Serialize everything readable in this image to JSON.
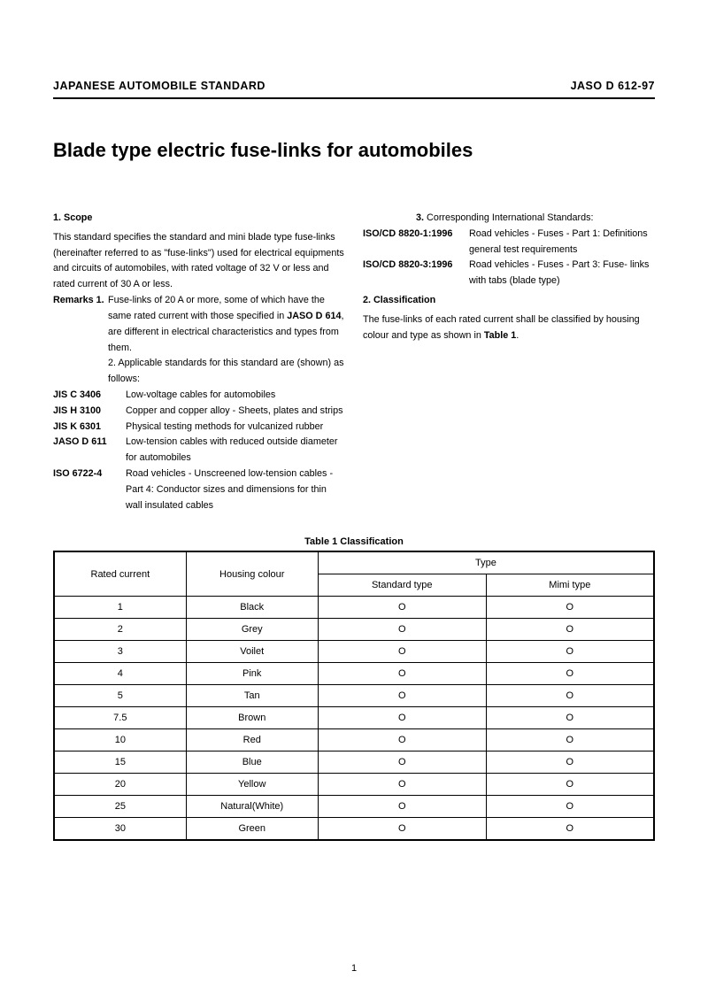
{
  "header": {
    "left": "JAPANESE AUTOMOBILE STANDARD",
    "right": "JASO D 612-97"
  },
  "title": "Blade type electric fuse-links for automobiles",
  "section1": {
    "head": "1. Scope",
    "body": "This standard specifies the standard and mini blade type fuse-links (hereinafter referred to as \"fuse-links\") used for electrical equipments and circuits of automobiles, with rated voltage of 32 V or less and rated current of 30 A or less.",
    "remarksLabel": "Remarks 1.",
    "remark1a": "Fuse-links of 20 A or more, some of which have the same rated current with those specified in ",
    "remark1bold": "JASO D 614",
    "remark1b": ", are different in electrical characteristics and types from them.",
    "remark2": "2. Applicable standards for this standard are (shown) as follows:"
  },
  "standards": [
    {
      "code": "JIS C 3406",
      "desc": "Low-voltage cables for automobiles"
    },
    {
      "code": "JIS H 3100",
      "desc": "Copper and copper alloy - Sheets, plates and strips"
    },
    {
      "code": "JIS K 6301",
      "desc": "Physical testing methods for vulcanized rubber"
    },
    {
      "code": "JASO D 611",
      "desc": "Low-tension cables with reduced outside diameter for automobiles"
    },
    {
      "code": "ISO 6722-4",
      "desc": "Road vehicles - Unscreened low-tension cables - Part 4: Conductor sizes and dimensions for thin wall insulated cables"
    }
  ],
  "intlLabel": "3.",
  "intlText": " Corresponding International Standards:",
  "intlStandards": [
    {
      "code": "ISO/CD 8820-1",
      "year": ":1996",
      "desc": "Road vehicles - Fuses - Part 1: Definitions general test requirements"
    },
    {
      "code": "ISO/CD 8820-3",
      "year": ":1996",
      "desc": "Road vehicles - Fuses - Part 3: Fuse- links with tabs (blade type)"
    }
  ],
  "section2": {
    "head": "2. Classification",
    "body": "The fuse-links of each rated current shall be classified by housing colour and type as shown in ",
    "bold": "Table 1",
    "tail": "."
  },
  "table": {
    "caption": "Table 1  Classification",
    "headers": {
      "rated": "Rated current",
      "colour": "Housing colour",
      "type": "Type",
      "std": "Standard type",
      "mini": "Mimi type"
    },
    "mark": "O",
    "rows": [
      {
        "current": "1",
        "colour": "Black",
        "std": true,
        "mini": true
      },
      {
        "current": "2",
        "colour": "Grey",
        "std": true,
        "mini": true
      },
      {
        "current": "3",
        "colour": "Voilet",
        "std": true,
        "mini": true
      },
      {
        "current": "4",
        "colour": "Pink",
        "std": true,
        "mini": true
      },
      {
        "current": "5",
        "colour": "Tan",
        "std": true,
        "mini": true
      },
      {
        "current": "7.5",
        "colour": "Brown",
        "std": true,
        "mini": true
      },
      {
        "current": "10",
        "colour": "Red",
        "std": true,
        "mini": true
      },
      {
        "current": "15",
        "colour": "Blue",
        "std": true,
        "mini": true
      },
      {
        "current": "20",
        "colour": "Yellow",
        "std": true,
        "mini": true
      },
      {
        "current": "25",
        "colour": "Natural(White)",
        "std": true,
        "mini": true
      },
      {
        "current": "30",
        "colour": "Green",
        "std": true,
        "mini": true
      }
    ]
  },
  "pageNumber": "1"
}
